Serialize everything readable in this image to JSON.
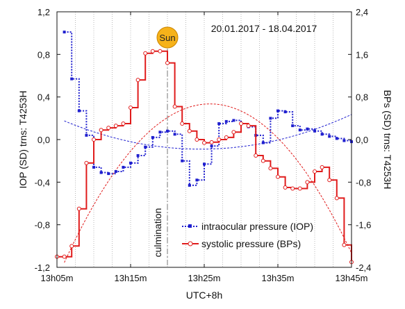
{
  "chart_data": {
    "type": "line",
    "date_range": "20.01.2017 - 18.04.2017",
    "xlabel": "UTC+8h",
    "ylabel_left": "IOP (SD) trns: T4253H",
    "ylabel_right": "BPs (SD) trns: T4253H",
    "x_ticks": [
      "13h05m",
      "13h15m",
      "13h25m",
      "13h35m",
      "13h45m"
    ],
    "x_range_minutes": [
      5,
      45
    ],
    "y_left_range": [
      -1.2,
      1.2
    ],
    "y_left_ticks": [
      "-1,2",
      "-0,8",
      "-0,4",
      "0,0",
      "0,4",
      "0,8",
      "1,2"
    ],
    "y_right_range": [
      -2.4,
      2.4
    ],
    "y_right_ticks": [
      "-2,4",
      "-1,6",
      "-0,8",
      "0,0",
      "0,8",
      "1,6",
      "2,4"
    ],
    "culmination_minute": 20,
    "culmination_label": "culmination",
    "sun_label": "Sun",
    "grid": "vertical-dotted",
    "legend_position": "bottom-center",
    "series": [
      {
        "name": "intraocular pressure (IOP)",
        "axis": "left",
        "color": "#1f1fcf",
        "style": "dotted-step",
        "x": [
          6,
          7,
          8,
          9,
          10,
          11,
          12,
          13,
          14,
          15,
          16,
          17,
          18,
          19,
          20,
          21,
          22,
          23,
          24,
          25,
          26,
          27,
          28,
          29,
          30,
          31,
          32,
          33,
          34,
          35,
          36,
          37,
          38,
          39,
          40,
          41,
          42,
          43,
          44,
          45
        ],
        "y": [
          1.01,
          0.57,
          0.27,
          0.04,
          -0.26,
          -0.31,
          -0.32,
          -0.3,
          -0.26,
          -0.22,
          -0.15,
          -0.07,
          0.02,
          0.07,
          0.08,
          0.05,
          -0.2,
          -0.43,
          -0.38,
          -0.23,
          -0.06,
          0.15,
          0.17,
          0.18,
          0.15,
          0.12,
          0.04,
          -0.03,
          0.2,
          0.27,
          0.26,
          0.13,
          0.09,
          0.1,
          0.08,
          0.05,
          0.03,
          0.01,
          -0.01,
          -0.02
        ]
      },
      {
        "name": "systolic pressure (BPs)",
        "axis": "right",
        "color": "#e01b1b",
        "style": "solid-step",
        "x": [
          5,
          6,
          7,
          8,
          9,
          10,
          11,
          12,
          13,
          14,
          15,
          16,
          17,
          18,
          19,
          20,
          21,
          22,
          23,
          24,
          25,
          26,
          27,
          28,
          29,
          30,
          31,
          32,
          33,
          34,
          35,
          36,
          37,
          38,
          39,
          40,
          41,
          42,
          43,
          44,
          45
        ],
        "y": [
          -2.2,
          -2.2,
          -2.0,
          -1.3,
          -0.44,
          0.0,
          0.18,
          0.22,
          0.26,
          0.3,
          0.6,
          1.12,
          1.62,
          1.66,
          1.66,
          1.44,
          0.62,
          0.3,
          0.16,
          0.0,
          -0.06,
          -0.05,
          0.0,
          0.04,
          0.14,
          0.3,
          0.26,
          -0.3,
          -0.4,
          -0.54,
          -0.7,
          -0.9,
          -0.92,
          -0.92,
          -0.8,
          -0.6,
          -0.52,
          -0.76,
          -1.1,
          -1.98,
          -2.3
        ]
      }
    ],
    "trend_lines": [
      {
        "series": "intraocular pressure (IOP)",
        "color": "#1f1fcf",
        "vertex_x": 24.5,
        "vertex_y": -0.09,
        "a": 0.000775
      },
      {
        "series": "systolic pressure (BPs)",
        "color": "#e01b1b",
        "vertex_x": 25.8,
        "vertex_y": 0.67,
        "a": -0.0076
      }
    ]
  }
}
